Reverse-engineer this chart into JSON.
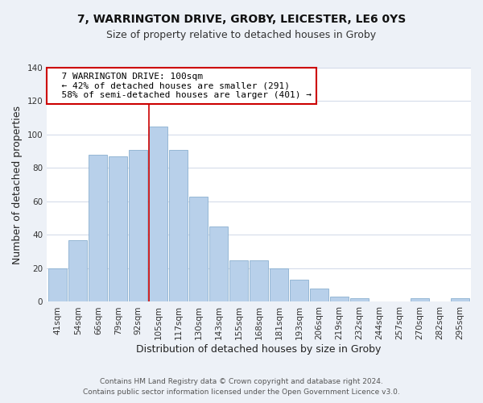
{
  "title": "7, WARRINGTON DRIVE, GROBY, LEICESTER, LE6 0YS",
  "subtitle": "Size of property relative to detached houses in Groby",
  "xlabel": "Distribution of detached houses by size in Groby",
  "ylabel": "Number of detached properties",
  "categories": [
    "41sqm",
    "54sqm",
    "66sqm",
    "79sqm",
    "92sqm",
    "105sqm",
    "117sqm",
    "130sqm",
    "143sqm",
    "155sqm",
    "168sqm",
    "181sqm",
    "193sqm",
    "206sqm",
    "219sqm",
    "232sqm",
    "244sqm",
    "257sqm",
    "270sqm",
    "282sqm",
    "295sqm"
  ],
  "values": [
    20,
    37,
    88,
    87,
    91,
    105,
    91,
    63,
    45,
    25,
    25,
    20,
    13,
    8,
    3,
    2,
    0,
    0,
    2,
    0,
    2
  ],
  "bar_color": "#b8d0ea",
  "bar_edge_color": "#8ab0d0",
  "vline_color": "#cc0000",
  "vline_index": 5,
  "annotation_title": "7 WARRINGTON DRIVE: 100sqm",
  "annotation_line1": "← 42% of detached houses are smaller (291)",
  "annotation_line2": "58% of semi-detached houses are larger (401) →",
  "annotation_box_color": "#ffffff",
  "annotation_box_edge_color": "#cc0000",
  "ylim": [
    0,
    140
  ],
  "yticks": [
    0,
    20,
    40,
    60,
    80,
    100,
    120,
    140
  ],
  "footer1": "Contains HM Land Registry data © Crown copyright and database right 2024.",
  "footer2": "Contains public sector information licensed under the Open Government Licence v3.0.",
  "bg_color": "#edf1f7",
  "plot_bg_color": "#ffffff",
  "title_fontsize": 10,
  "subtitle_fontsize": 9,
  "axis_label_fontsize": 9,
  "tick_fontsize": 7.5,
  "footer_fontsize": 6.5
}
